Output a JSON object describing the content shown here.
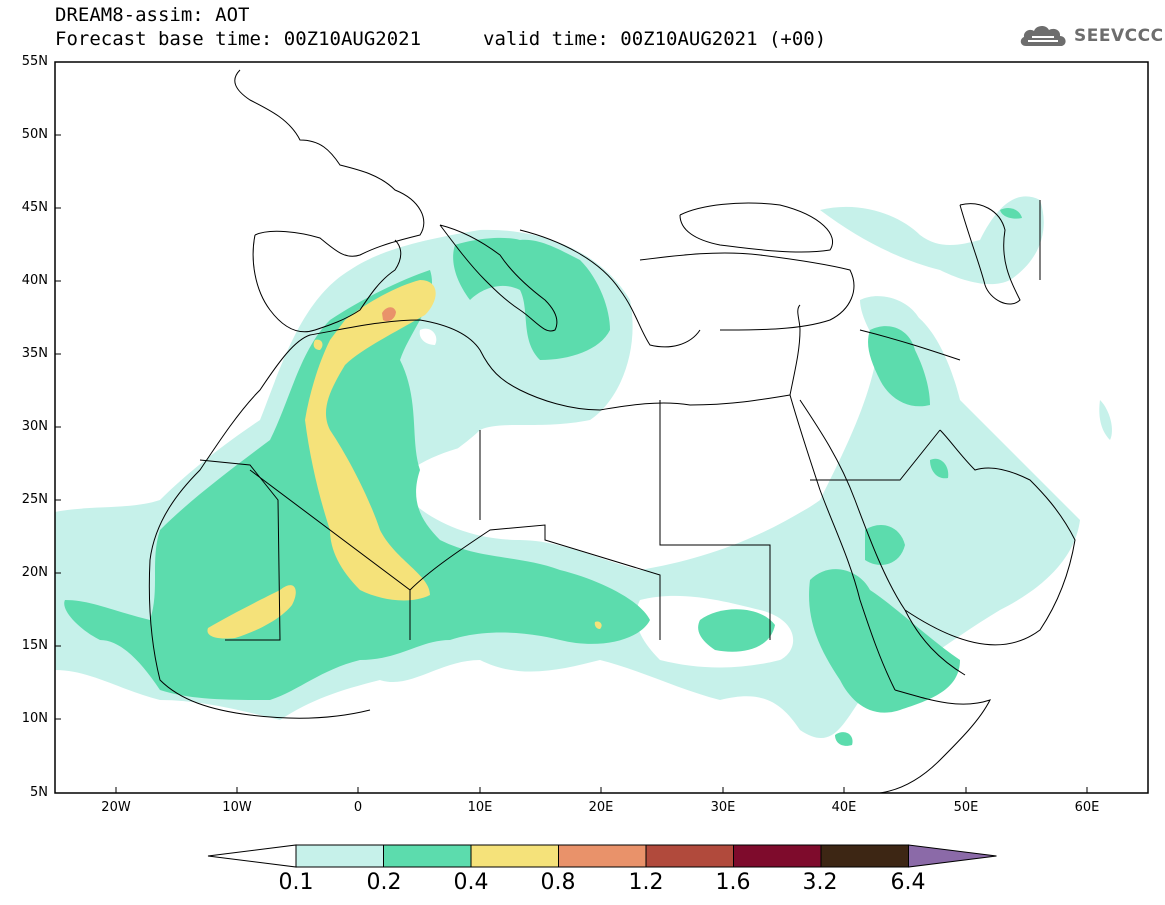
{
  "header": {
    "title": "DREAM8-assim: AOT",
    "forecast_line": "Forecast base time: 00Z10AUG2021",
    "valid_line": "valid time: 00Z10AUG2021 (+00)",
    "logo_text": "SEEVCCC",
    "logo_icon": "cloud-icon"
  },
  "map": {
    "lat_labels": [
      "55N",
      "50N",
      "45N",
      "40N",
      "35N",
      "30N",
      "25N",
      "20N",
      "15N",
      "10N",
      "5N"
    ],
    "lon_labels": [
      "20W",
      "10W",
      "0",
      "10E",
      "20E",
      "30E",
      "40E",
      "50E",
      "60E"
    ],
    "lon_range": [
      -25,
      65
    ],
    "lat_range": [
      5,
      55
    ]
  },
  "colorbar": {
    "levels": [
      "0.1",
      "0.2",
      "0.4",
      "0.8",
      "1.2",
      "1.6",
      "3.2",
      "6.4"
    ],
    "colors": [
      "#ffffff",
      "#c6f1ea",
      "#5cdcad",
      "#f5e27a",
      "#e9926a",
      "#b14a3c",
      "#7e0b2c",
      "#3d2614",
      "#8b6aa8"
    ]
  }
}
